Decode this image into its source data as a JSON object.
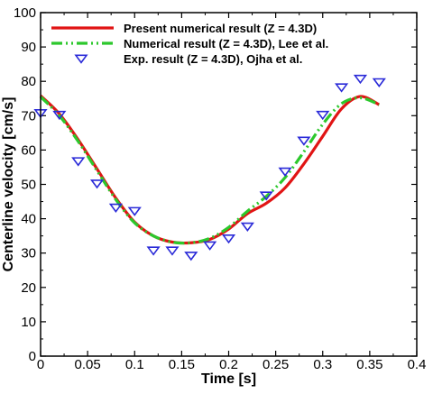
{
  "chart_data": {
    "type": "line",
    "title": "",
    "xlabel": "Time [s]",
    "ylabel": "Centerline velocity [cm/s]",
    "xlim": [
      0,
      0.4
    ],
    "ylim": [
      0,
      100
    ],
    "xticks": [
      0,
      0.05,
      0.1,
      0.15,
      0.2,
      0.25,
      0.3,
      0.35,
      0.4
    ],
    "xtick_labels": [
      "0",
      "0.05",
      "0.1",
      "0.15",
      "0.2",
      "0.25",
      "0.3",
      "0.35",
      "0.4"
    ],
    "yticks": [
      0,
      10,
      20,
      30,
      40,
      50,
      60,
      70,
      80,
      90,
      100
    ],
    "ytick_labels": [
      "0",
      "10",
      "20",
      "30",
      "40",
      "50",
      "60",
      "70",
      "80",
      "90",
      "100"
    ],
    "grid": false,
    "legend_position": "top-left",
    "series": [
      {
        "name": "Present numerical result (Z = 4.3D)",
        "kind": "line",
        "style": "solid",
        "color": "#e11414",
        "x": [
          0,
          0.02,
          0.04,
          0.06,
          0.08,
          0.1,
          0.12,
          0.14,
          0.16,
          0.18,
          0.2,
          0.22,
          0.24,
          0.26,
          0.28,
          0.3,
          0.32,
          0.34,
          0.36
        ],
        "y": [
          75.8,
          70.5,
          63.0,
          54.5,
          46.0,
          39.0,
          35.0,
          33.2,
          33.0,
          34.0,
          37.0,
          41.5,
          44.5,
          49.0,
          56.0,
          64.0,
          72.0,
          75.6,
          73.2
        ]
      },
      {
        "name": "Numerical result (Z = 4.3D), Lee et al.",
        "kind": "line",
        "style": "dash-dot-dot",
        "color": "#2cc82c",
        "x": [
          0,
          0.02,
          0.04,
          0.06,
          0.08,
          0.1,
          0.12,
          0.14,
          0.16,
          0.18,
          0.2,
          0.22,
          0.24,
          0.26,
          0.28,
          0.3,
          0.32,
          0.34,
          0.36
        ],
        "y": [
          75.5,
          70.0,
          62.5,
          54.0,
          45.6,
          38.8,
          35.0,
          33.2,
          33.0,
          34.3,
          37.5,
          42.2,
          46.5,
          52.0,
          59.5,
          67.5,
          73.5,
          75.2,
          73.2
        ]
      },
      {
        "name": "Exp. result (Z = 4.3D), Ojha et al.",
        "kind": "scatter",
        "marker": "triangle-down",
        "color": "#2a2ad8",
        "x": [
          0.0,
          0.02,
          0.04,
          0.06,
          0.08,
          0.1,
          0.12,
          0.14,
          0.16,
          0.18,
          0.2,
          0.22,
          0.24,
          0.26,
          0.28,
          0.3,
          0.32,
          0.34,
          0.36
        ],
        "y": [
          71,
          70.5,
          57,
          50.5,
          43.5,
          42.5,
          31,
          31,
          29.5,
          32.5,
          34.5,
          38,
          47,
          54,
          63,
          70.5,
          78.5,
          81,
          80
        ]
      }
    ]
  }
}
